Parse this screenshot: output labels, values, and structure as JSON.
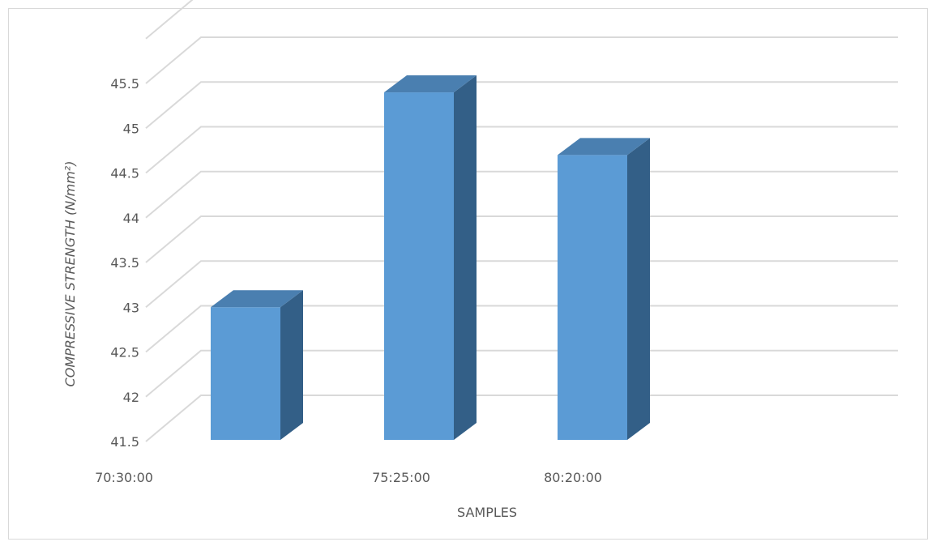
{
  "chart_data": {
    "type": "bar",
    "style": "3d-column",
    "categories": [
      "70:30:00",
      "75:25:00",
      "80:20:00"
    ],
    "values": [
      43.0,
      45.4,
      44.7
    ],
    "ylim": [
      41.5,
      45.5
    ],
    "yticks": [
      "41.5",
      "42",
      "42.5",
      "43",
      "43.5",
      "44",
      "44.5",
      "45",
      "45.5"
    ],
    "xlabel": "SAMPLES",
    "ylabel": "COMPRESSIVE STRENGTH (N/mm²)",
    "grid": true,
    "legend": "none",
    "colors": {
      "front": "#5b9bd5",
      "side": "#335f87",
      "top": "#4a7fb0",
      "grid": "#d9d9d9",
      "text": "#595959"
    }
  }
}
